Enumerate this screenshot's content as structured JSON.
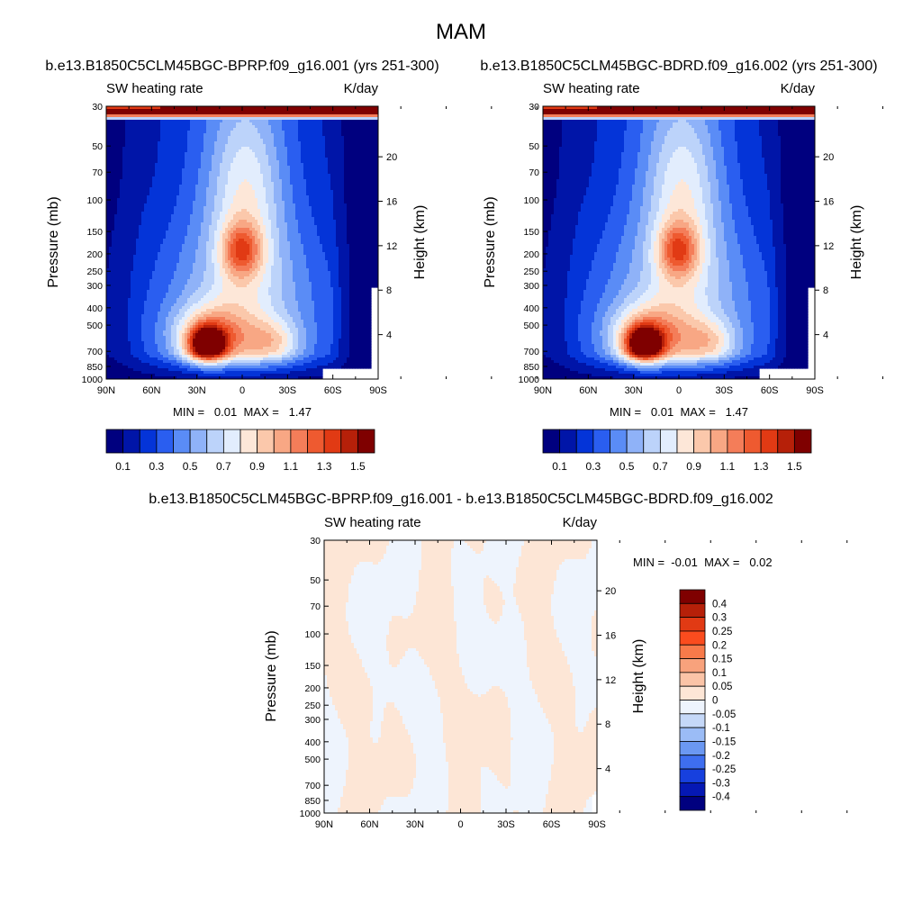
{
  "figure": {
    "title": "MAM"
  },
  "chart_data": [
    {
      "type": "heatmap",
      "title": "b.e13.B1850C5CLM45BGC-BPRP.f09_g16.001 (yrs 251-300)",
      "left_label": "SW heating rate",
      "right_label": "K/day",
      "ylabel": "Pressure (mb)",
      "y2label": "Height (km)",
      "x_ticks": [
        "90N",
        "60N",
        "30N",
        "0",
        "30S",
        "60S",
        "90S"
      ],
      "y_ticks": [
        30,
        50,
        70,
        100,
        150,
        200,
        250,
        300,
        400,
        500,
        700,
        850,
        1000
      ],
      "height_ticks": [
        20,
        16,
        12,
        8,
        4
      ],
      "ylim": [
        30,
        1000
      ],
      "min_max": "MIN =   0.01  MAX =   1.47",
      "legend_position": "bottom",
      "colorbar_labels": [
        "0.1",
        "0.3",
        "0.5",
        "0.7",
        "0.9",
        "1.1",
        "1.3",
        "1.5"
      ],
      "colors": [
        "#00007f",
        "#0015a8",
        "#0434d8",
        "#2a5ef0",
        "#5a8cf6",
        "#8fb2f8",
        "#bcd3fa",
        "#e2edfd",
        "#fde7d8",
        "#fbc8ab",
        "#f8a784",
        "#f47d59",
        "#ee5a30",
        "#e13a14",
        "#b62009",
        "#7f0000"
      ]
    },
    {
      "type": "heatmap",
      "title": "b.e13.B1850C5CLM45BGC-BDRD.f09_g16.002 (yrs 251-300)",
      "left_label": "SW heating rate",
      "right_label": "K/day",
      "ylabel": "Pressure (mb)",
      "y2label": "Height (km)",
      "x_ticks": [
        "90N",
        "60N",
        "30N",
        "0",
        "30S",
        "60S",
        "90S"
      ],
      "y_ticks": [
        30,
        50,
        70,
        100,
        150,
        200,
        250,
        300,
        400,
        500,
        700,
        850,
        1000
      ],
      "height_ticks": [
        20,
        16,
        12,
        8,
        4
      ],
      "ylim": [
        30,
        1000
      ],
      "min_max": "MIN =   0.01  MAX =   1.47",
      "legend_position": "bottom",
      "colorbar_labels": [
        "0.1",
        "0.3",
        "0.5",
        "0.7",
        "0.9",
        "1.1",
        "1.3",
        "1.5"
      ],
      "colors": [
        "#00007f",
        "#0015a8",
        "#0434d8",
        "#2a5ef0",
        "#5a8cf6",
        "#8fb2f8",
        "#bcd3fa",
        "#e2edfd",
        "#fde7d8",
        "#fbc8ab",
        "#f8a784",
        "#f47d59",
        "#ee5a30",
        "#e13a14",
        "#b62009",
        "#7f0000"
      ]
    },
    {
      "type": "heatmap",
      "title": "b.e13.B1850C5CLM45BGC-BPRP.f09_g16.001 - b.e13.B1850C5CLM45BGC-BDRD.f09_g16.002",
      "left_label": "SW heating rate",
      "right_label": "K/day",
      "ylabel": "Pressure (mb)",
      "y2label": "Height (km)",
      "x_ticks": [
        "90N",
        "60N",
        "30N",
        "0",
        "30S",
        "60S",
        "90S"
      ],
      "y_ticks": [
        30,
        50,
        70,
        100,
        150,
        200,
        250,
        300,
        400,
        500,
        700,
        850,
        1000
      ],
      "height_ticks": [
        20,
        16,
        12,
        8,
        4
      ],
      "ylim": [
        30,
        1000
      ],
      "min_max": "MIN =  -0.01  MAX =   0.02",
      "legend_position": "right",
      "colorbar_labels": [
        "0.4",
        "0.3",
        "0.25",
        "0.2",
        "0.15",
        "0.1",
        "0.05",
        "0",
        "-0.05",
        "-0.1",
        "-0.15",
        "-0.2",
        "-0.25",
        "-0.3",
        "-0.4"
      ],
      "colors": [
        "#7f0000",
        "#b62009",
        "#e13a14",
        "#fa4c1e",
        "#f87a4a",
        "#f8a27c",
        "#fbc4a7",
        "#fde6d6",
        "#eef4fd",
        "#c5d8f8",
        "#9bbcf6",
        "#6b98f2",
        "#3e6ef0",
        "#1740de",
        "#0518b4",
        "#00007f"
      ]
    }
  ]
}
